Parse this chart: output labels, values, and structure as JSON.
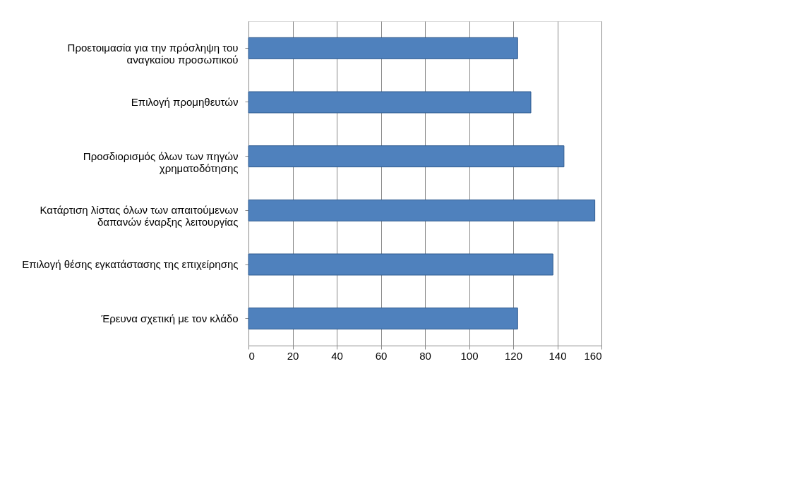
{
  "chart_data": {
    "type": "bar",
    "orientation": "horizontal",
    "categories": [
      "Προετοιμασία για την πρόσληψη του αναγκαίου προσωπικού",
      "Επιλογή προμηθευτών",
      "Προσδιορισμός όλων των πηγών χρηματοδότησης",
      "Κατάρτιση λίστας όλων των απαιτούμενων δαπανών έναρξης λειτουργίας",
      "Επιλογή θέσης εγκατάστασης της επιχείρησης",
      "Έρευνα σχετική με τον κλάδο"
    ],
    "values": [
      122,
      128,
      143,
      157,
      138,
      122
    ],
    "color": "#4f81bd",
    "xlim": [
      0,
      160
    ],
    "xticks": [
      0,
      20,
      40,
      60,
      80,
      100,
      120,
      140,
      160
    ],
    "grid": "x"
  }
}
